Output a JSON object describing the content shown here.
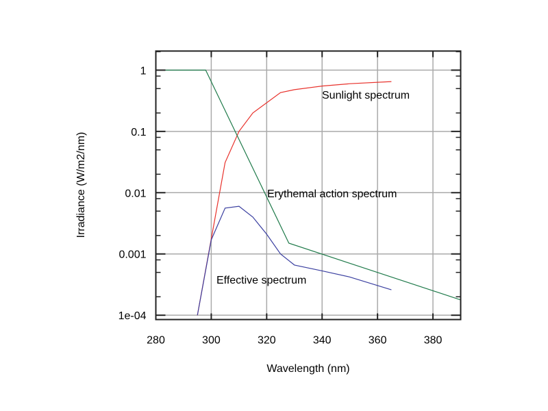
{
  "chart_data": {
    "type": "line",
    "title": "",
    "xlabel": "Wavelength (nm)",
    "ylabel": "Irradiance (W/m2/nm)",
    "xlim": [
      280,
      390
    ],
    "ylim": [
      8.5e-05,
      2.05
    ],
    "yscale": "log",
    "grid": true,
    "x_ticks": [
      280,
      300,
      320,
      340,
      360,
      380
    ],
    "x_tick_labels": [
      "280",
      "300",
      "320",
      "340",
      "360",
      "380"
    ],
    "y_ticks": [
      1,
      0.1,
      0.01,
      0.001,
      0.0001
    ],
    "y_tick_labels": [
      "1",
      "0.1",
      "0.01",
      "0.001",
      "1e-04"
    ],
    "series": [
      {
        "name": "Sunlight spectrum",
        "color": "#e8302a",
        "x": [
          295,
          305,
          310,
          315,
          325,
          330,
          340,
          350,
          365
        ],
        "y": [
          0.0001,
          0.031,
          0.1,
          0.2,
          0.43,
          0.48,
          0.55,
          0.6,
          0.65
        ]
      },
      {
        "name": "Erythemal action spectrum",
        "color": "#1f7a4a",
        "x": [
          280,
          298,
          328,
          390
        ],
        "y": [
          1,
          1,
          0.0015,
          0.000178
        ]
      },
      {
        "name": "Effective spectrum",
        "color": "#3a3fa0",
        "x": [
          295,
          300,
          305,
          310,
          315,
          320,
          325,
          330,
          340,
          350,
          365
        ],
        "y": [
          0.0001,
          0.0017,
          0.0056,
          0.006,
          0.004,
          0.0021,
          0.001,
          0.00066,
          0.00053,
          0.00042,
          0.00026
        ]
      }
    ]
  }
}
